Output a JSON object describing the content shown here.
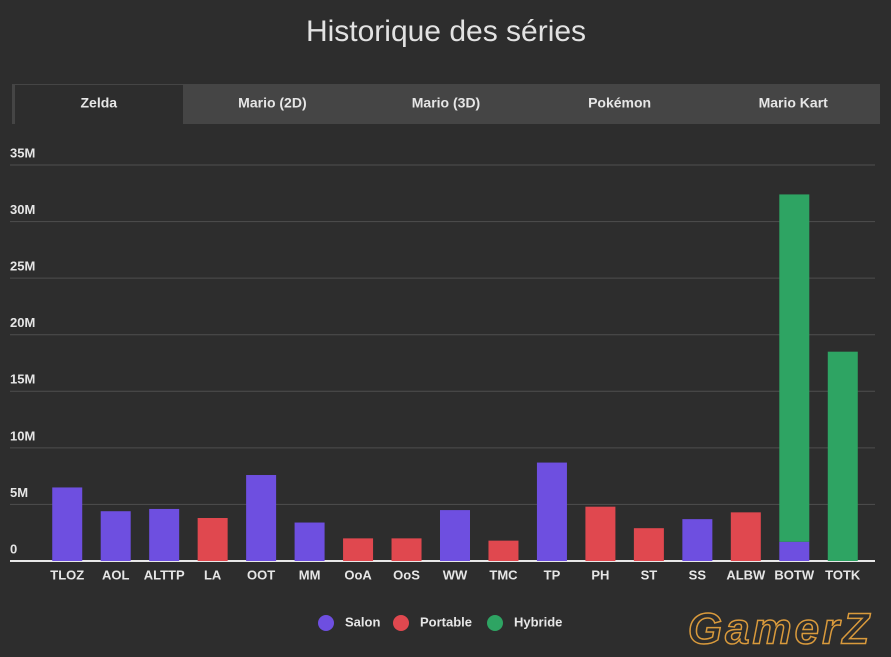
{
  "tabs": [
    "Zelda",
    "Mario (2D)",
    "Mario (3D)",
    "Pokémon",
    "Mario Kart"
  ],
  "watermark": "GamerZ",
  "chart_data": {
    "type": "bar",
    "stacked": true,
    "title": "Historique des séries",
    "categories": [
      "TLOZ",
      "AOL",
      "ALTTP",
      "LA",
      "OOT",
      "MM",
      "OoA",
      "OoS",
      "WW",
      "TMC",
      "TP",
      "PH",
      "ST",
      "SS",
      "ALBW",
      "BOTW",
      "TOTK"
    ],
    "series": [
      {
        "name": "Salon",
        "color": "#6e4fe0",
        "values": [
          6500000,
          4400000,
          4600000,
          null,
          7600000,
          3400000,
          null,
          null,
          4500000,
          null,
          8700000,
          null,
          null,
          3700000,
          null,
          1700000,
          null
        ]
      },
      {
        "name": "Portable",
        "color": "#e0484f",
        "values": [
          null,
          null,
          null,
          3800000,
          null,
          null,
          2000000,
          2000000,
          null,
          1800000,
          null,
          4800000,
          2900000,
          null,
          4300000,
          null,
          null
        ]
      },
      {
        "name": "Hybride",
        "color": "#2ea463",
        "values": [
          null,
          null,
          null,
          null,
          null,
          null,
          null,
          null,
          null,
          null,
          null,
          null,
          null,
          null,
          null,
          30700000,
          18500000
        ]
      }
    ],
    "ylim": [
      0,
      35000000
    ],
    "yticks": [
      0,
      {
        "value": 5000000,
        "label": "5M"
      },
      {
        "value": 10000000,
        "label": "10M"
      },
      {
        "value": 15000000,
        "label": "15M"
      },
      {
        "value": 20000000,
        "label": "20M"
      },
      {
        "value": 25000000,
        "label": "25M"
      },
      {
        "value": 30000000,
        "label": "30M"
      },
      {
        "value": 35000000,
        "label": "35M"
      }
    ],
    "grid": true,
    "legend": "bottom"
  }
}
